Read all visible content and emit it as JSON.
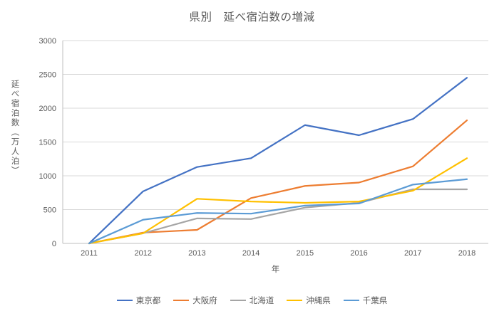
{
  "title": "県別　延べ宿泊数の増減",
  "chart_data": {
    "type": "line",
    "title": "県別　延べ宿泊数の増減",
    "xlabel": "年",
    "ylabel": "延べ宿泊数（万人泊）",
    "x": [
      "2011",
      "2012",
      "2013",
      "2014",
      "2015",
      "2016",
      "2017",
      "2018"
    ],
    "ylim": [
      0,
      3000
    ],
    "ytick_step": 500,
    "grid": true,
    "legend_position": "bottom",
    "series": [
      {
        "name": "東京都",
        "color": "#4472C4",
        "values": [
          0,
          770,
          1130,
          1260,
          1750,
          1600,
          1840,
          2450
        ]
      },
      {
        "name": "大阪府",
        "color": "#ED7D31",
        "values": [
          0,
          160,
          200,
          670,
          850,
          900,
          1140,
          1820
        ]
      },
      {
        "name": "北海道",
        "color": "#A5A5A5",
        "values": [
          0,
          150,
          370,
          360,
          530,
          600,
          800,
          800
        ]
      },
      {
        "name": "沖縄県",
        "color": "#FFC000",
        "values": [
          0,
          150,
          660,
          620,
          600,
          620,
          780,
          1260
        ]
      },
      {
        "name": "千葉県",
        "color": "#5B9BD5",
        "values": [
          0,
          350,
          450,
          440,
          560,
          590,
          870,
          950
        ]
      }
    ],
    "axis_color": "#BFBFBF",
    "grid_color": "#D9D9D9",
    "text_color": "#595959"
  }
}
